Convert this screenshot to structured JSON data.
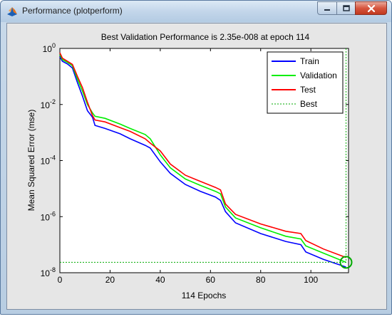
{
  "window": {
    "title": "Performance (plotperform)",
    "icon": "matlab-icon",
    "controls": [
      "minimize-icon",
      "maximize-icon",
      "close-icon"
    ]
  },
  "chart_data": {
    "type": "line",
    "title": "Best Validation Performance is 2.35e-008 at epoch 114",
    "xlabel": "114 Epochs",
    "ylabel": "Mean Squared Error  (mse)",
    "xlim": [
      0,
      115
    ],
    "ylim": [
      1e-08,
      1
    ],
    "yscale": "log",
    "x_ticks": [
      "0",
      "20",
      "40",
      "60",
      "80",
      "100"
    ],
    "y_ticks": [
      {
        "base": "10",
        "exp": "0"
      },
      {
        "base": "10",
        "exp": "-2"
      },
      {
        "base": "10",
        "exp": "-4"
      },
      {
        "base": "10",
        "exp": "-6"
      },
      {
        "base": "10",
        "exp": "-8"
      }
    ],
    "legend_position": "top-right",
    "series": [
      {
        "name": "Train",
        "color": "#0000ff",
        "style": "solid",
        "x": [
          0,
          1,
          3,
          5,
          7,
          9,
          11,
          13,
          14,
          18,
          24,
          28,
          34,
          36,
          40,
          44,
          50,
          56,
          62,
          64,
          66,
          70,
          80,
          90,
          96,
          98,
          105,
          114
        ],
        "y": [
          0.5,
          0.35,
          0.28,
          0.2,
          0.06,
          0.02,
          0.006,
          0.0035,
          0.0018,
          0.0014,
          0.0009,
          0.0006,
          0.00035,
          0.00028,
          9e-05,
          3.5e-05,
          1.4e-05,
          8e-06,
          5e-06,
          3.8e-06,
          1.5e-06,
          6e-07,
          2.5e-07,
          1.3e-07,
          1e-07,
          5.5e-08,
          3e-08,
          1.6e-08
        ]
      },
      {
        "name": "Validation",
        "color": "#00ee00",
        "style": "solid",
        "x": [
          0,
          1,
          3,
          5,
          7,
          9,
          11,
          13,
          14,
          18,
          24,
          28,
          34,
          36,
          40,
          44,
          50,
          56,
          62,
          64,
          66,
          70,
          80,
          90,
          96,
          98,
          105,
          114
        ],
        "y": [
          0.6,
          0.4,
          0.32,
          0.24,
          0.08,
          0.03,
          0.01,
          0.005,
          0.0038,
          0.0032,
          0.002,
          0.0014,
          0.00085,
          0.0006,
          0.00016,
          5.5e-05,
          2.2e-05,
          1.3e-05,
          8e-06,
          6.5e-06,
          2.2e-06,
          9e-07,
          4e-07,
          2e-07,
          1.6e-07,
          9e-08,
          5e-08,
          2.35e-08
        ]
      },
      {
        "name": "Test",
        "color": "#ff0000",
        "style": "solid",
        "x": [
          0,
          1,
          3,
          5,
          7,
          9,
          11,
          13,
          14,
          18,
          24,
          28,
          34,
          36,
          40,
          44,
          50,
          56,
          62,
          64,
          66,
          70,
          80,
          90,
          96,
          98,
          105,
          114
        ],
        "y": [
          0.7,
          0.45,
          0.35,
          0.27,
          0.1,
          0.04,
          0.012,
          0.004,
          0.0028,
          0.0024,
          0.0015,
          0.0011,
          0.0006,
          0.00042,
          0.00022,
          7.5e-05,
          3e-05,
          1.8e-05,
          1.1e-05,
          9e-06,
          2.8e-06,
          1.2e-06,
          5.5e-07,
          3e-07,
          2.5e-07,
          1.4e-07,
          7e-08,
          3.5e-08
        ]
      },
      {
        "name": "Best",
        "color": "#00aa00",
        "style": "dotted",
        "x": [
          0,
          114,
          114
        ],
        "y": [
          2.35e-08,
          2.35e-08,
          1
        ]
      }
    ],
    "best_marker": {
      "x": 114,
      "y": 2.35e-08,
      "color": "#00aa00"
    }
  }
}
